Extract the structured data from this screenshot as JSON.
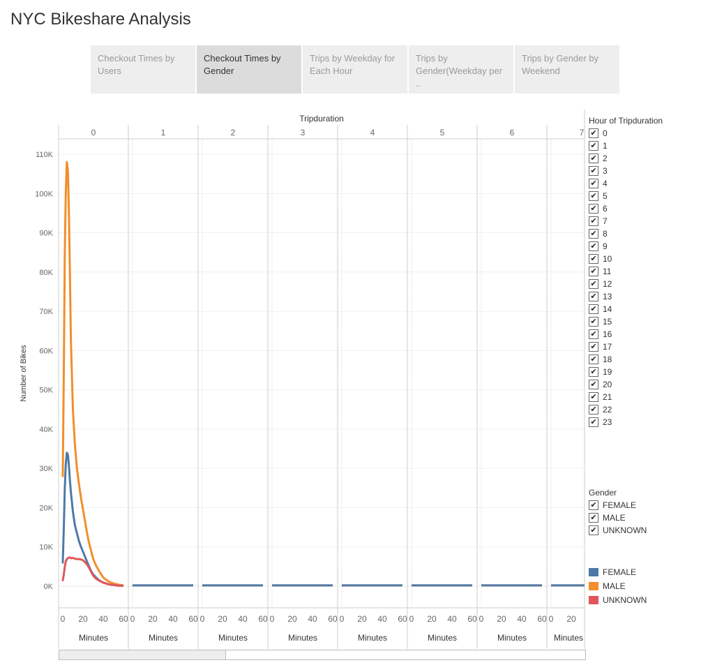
{
  "page_title": "NYC Bikeshare Analysis",
  "tabs": [
    {
      "label": "Checkout Times by Users",
      "active": false
    },
    {
      "label": "Checkout Times by Gender",
      "active": true
    },
    {
      "label": "Trips by Weekday for Each Hour",
      "active": false
    },
    {
      "label": "Trips by Gender(Weekday per ..",
      "active": false
    },
    {
      "label": "Trips by Gender by Weekend",
      "active": false
    }
  ],
  "filters": {
    "hour": {
      "title": "Hour of Tripduration",
      "options": [
        "0",
        "1",
        "2",
        "3",
        "4",
        "5",
        "6",
        "7",
        "8",
        "9",
        "10",
        "11",
        "12",
        "13",
        "14",
        "15",
        "16",
        "17",
        "18",
        "19",
        "20",
        "21",
        "22",
        "23"
      ],
      "check": "✔"
    },
    "gender": {
      "title": "Gender",
      "options": [
        "FEMALE",
        "MALE",
        "UNKNOWN"
      ],
      "check": "✔"
    }
  },
  "color_legend": [
    {
      "label": "FEMALE",
      "color": "#4e79a7"
    },
    {
      "label": "MALE",
      "color": "#f28e2b"
    },
    {
      "label": "UNKNOWN",
      "color": "#e15759"
    }
  ],
  "chart_data": {
    "type": "line",
    "title": "",
    "column_header": "Tripduration",
    "panels": [
      "0",
      "1",
      "2",
      "3",
      "4",
      "5",
      "6",
      "7"
    ],
    "xlabel": "Minutes",
    "ylabel": "Number of Bikes",
    "x_ticks": [
      0,
      20,
      40,
      60
    ],
    "x_range": [
      0,
      60
    ],
    "y_ticks": [
      "0K",
      "10K",
      "20K",
      "30K",
      "40K",
      "50K",
      "60K",
      "70K",
      "80K",
      "90K",
      "100K",
      "110K"
    ],
    "ylim": [
      0,
      112000
    ],
    "grid": true,
    "legend_position": "right",
    "series": [
      {
        "name": "FEMALE",
        "color": "#4e79a7",
        "x": [
          0,
          1,
          2,
          3,
          4,
          5,
          6,
          7,
          8,
          10,
          12,
          14,
          16,
          18,
          20,
          22,
          24,
          26,
          28,
          30,
          33,
          36,
          40,
          45,
          50,
          55,
          59
        ],
        "y": [
          6000,
          15000,
          25000,
          31000,
          34000,
          33500,
          31000,
          27000,
          24000,
          19000,
          15500,
          13500,
          11500,
          10000,
          8800,
          7500,
          6200,
          5000,
          3900,
          3000,
          2200,
          1500,
          900,
          500,
          300,
          150,
          100
        ]
      },
      {
        "name": "MALE",
        "color": "#f28e2b",
        "x": [
          0,
          1,
          2,
          3,
          4,
          5,
          6,
          7,
          8,
          10,
          12,
          14,
          16,
          18,
          20,
          22,
          24,
          26,
          28,
          30,
          33,
          36,
          40,
          45,
          50,
          55,
          59
        ],
        "y": [
          28000,
          55000,
          85000,
          100000,
          108000,
          106000,
          96000,
          80000,
          63000,
          45000,
          36000,
          30000,
          26000,
          22500,
          19500,
          16500,
          13500,
          11000,
          9000,
          7000,
          5200,
          3800,
          2200,
          1200,
          700,
          400,
          250
        ]
      },
      {
        "name": "UNKNOWN",
        "color": "#e15759",
        "x": [
          0,
          1,
          2,
          3,
          4,
          5,
          6,
          7,
          8,
          10,
          12,
          14,
          16,
          18,
          20,
          22,
          24,
          26,
          28,
          30,
          33,
          36,
          40,
          45,
          50,
          55,
          59
        ],
        "y": [
          1500,
          3000,
          5000,
          6300,
          6900,
          7100,
          7300,
          7300,
          7100,
          7200,
          7000,
          6900,
          6900,
          6800,
          6600,
          6100,
          5500,
          4700,
          3700,
          2700,
          1900,
          1400,
          900,
          500,
          300,
          150,
          100
        ]
      }
    ],
    "other_panels_value": 200
  }
}
